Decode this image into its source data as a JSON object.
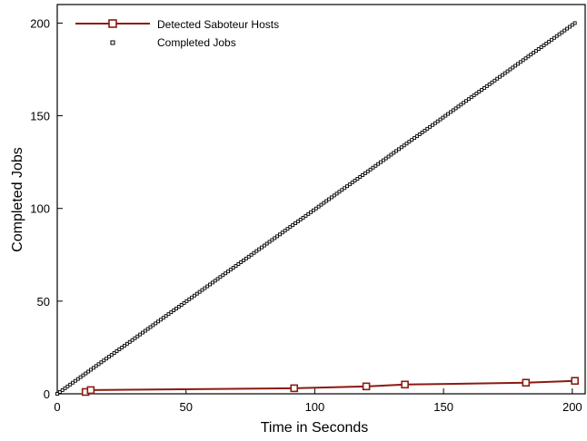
{
  "chart_data": {
    "type": "line",
    "xlabel": "Time in Seconds",
    "ylabel": "Completed Jobs",
    "xlim": [
      0,
      205
    ],
    "ylim": [
      0,
      210
    ],
    "x_ticks": [
      "0",
      "50",
      "100",
      "150",
      "200"
    ],
    "y_ticks": [
      "0",
      "50",
      "100",
      "150",
      "200"
    ],
    "legend_position": "top-left",
    "grid": false,
    "series": [
      {
        "name": "Detected Saboteur Hosts",
        "style": "line-with-open-square-markers",
        "color": "#8b1a10",
        "x": [
          11,
          13,
          92,
          120,
          135,
          182,
          201
        ],
        "y": [
          1,
          2,
          3,
          4,
          5,
          6,
          7
        ]
      },
      {
        "name": "Completed Jobs",
        "style": "small-open-square-markers",
        "color": "#000000",
        "x_start": 0,
        "x_end": 201,
        "y_start": 0,
        "y_end": 200,
        "count": 201
      }
    ]
  }
}
